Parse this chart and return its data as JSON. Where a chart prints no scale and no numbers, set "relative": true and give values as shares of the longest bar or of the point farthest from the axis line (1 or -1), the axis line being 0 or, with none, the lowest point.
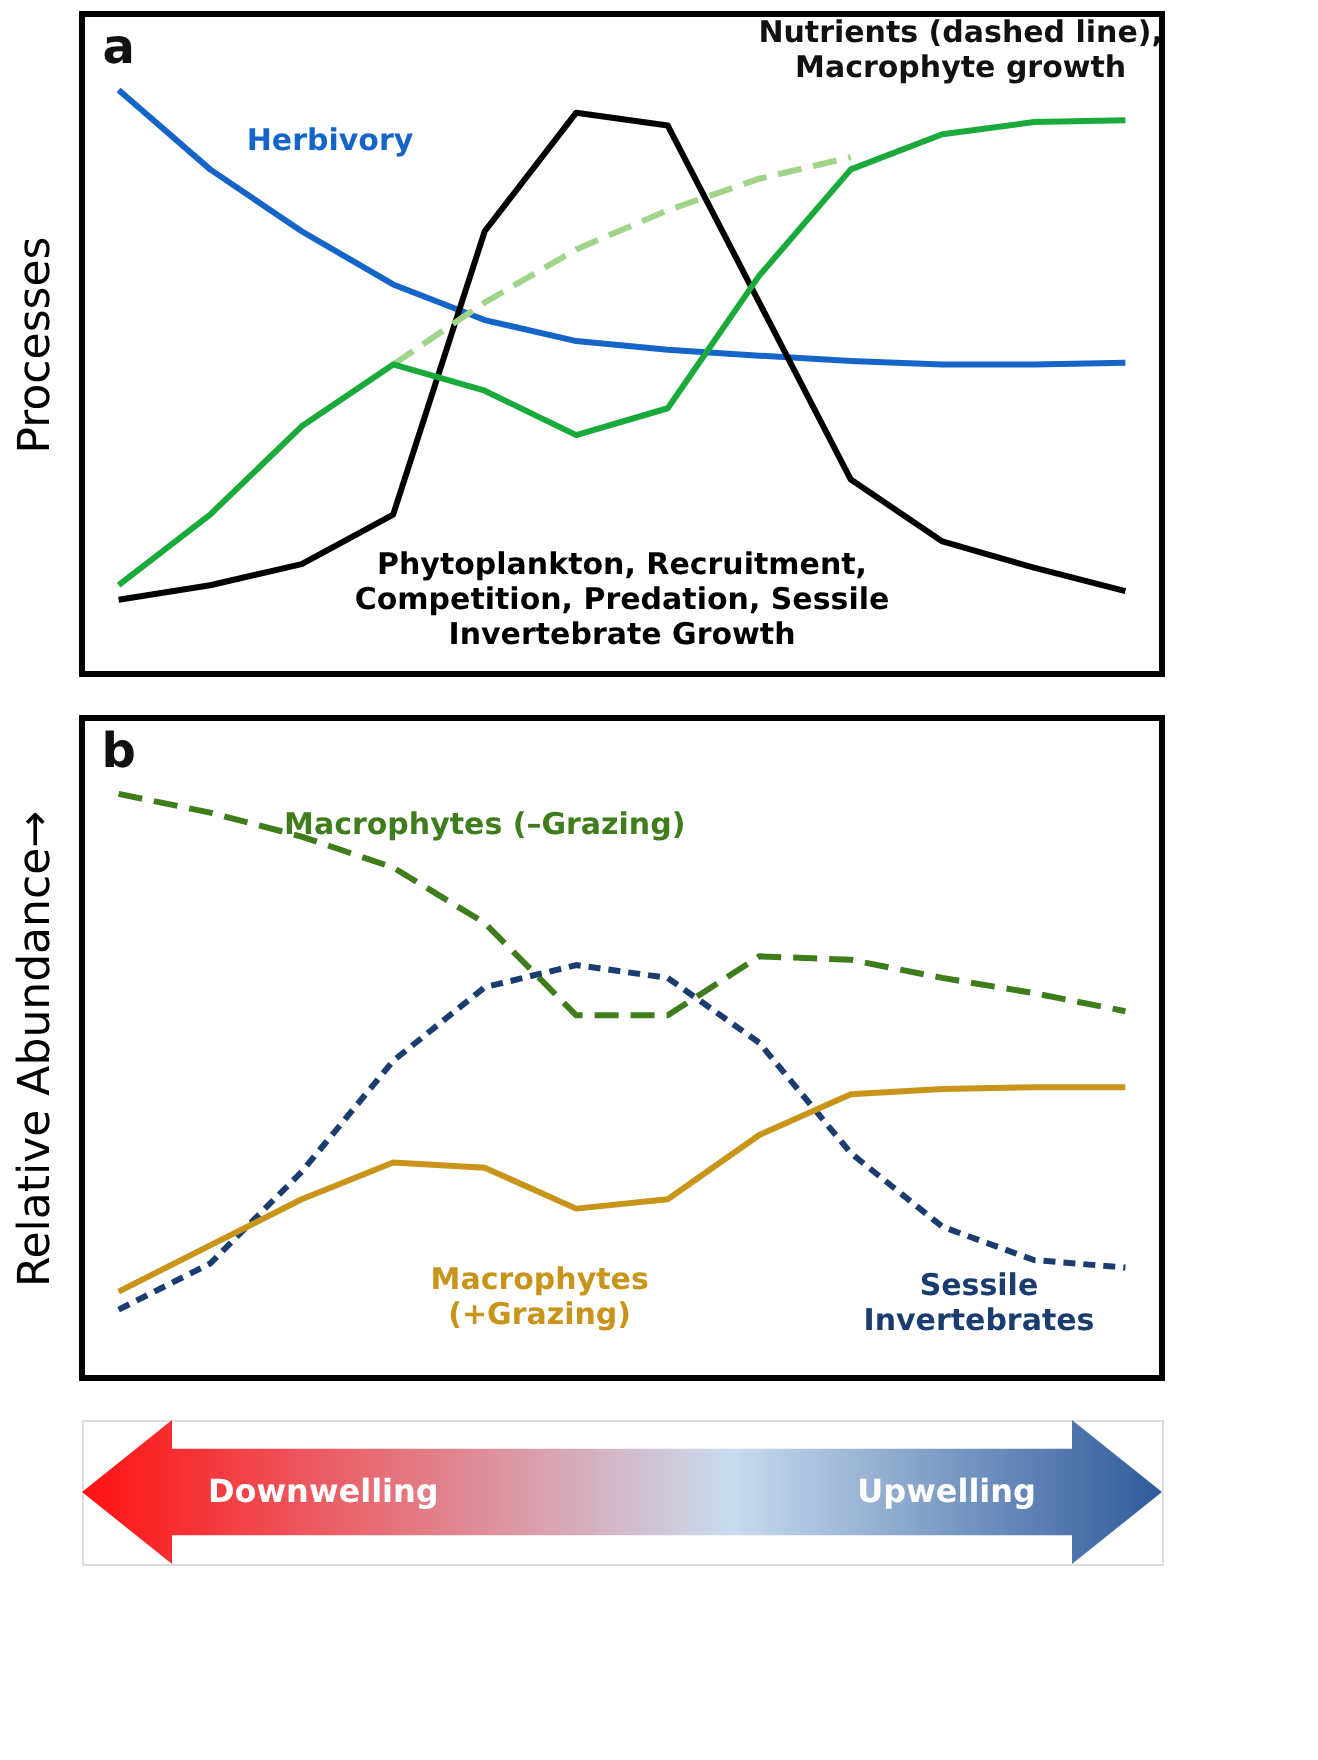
{
  "chart_data": [
    {
      "type": "line",
      "title": "a",
      "ylabel": "Processes",
      "relative": true,
      "categories": [
        null,
        null,
        null,
        null,
        null,
        null,
        null,
        null,
        null,
        null,
        null,
        null
      ],
      "legend": false,
      "annotations": [
        "Nutrients (dashed line), Macrophyte growth"
      ],
      "series": [
        {
          "name": "Herbivory",
          "color": "#1565c8",
          "line_style": "solid",
          "values": [
            1,
            0.864,
            0.758,
            0.667,
            0.606,
            0.57,
            0.555,
            0.545,
            0.536,
            0.53,
            0.53,
            0.533
          ]
        },
        {
          "name": "Phytoplankton, Recruitment, Competition, Predation, Sessile Invertebrate Growth",
          "color": "#000000",
          "line_style": "solid",
          "values": [
            0.127,
            0.152,
            0.188,
            0.273,
            0.758,
            0.961,
            0.939,
            0.636,
            0.333,
            0.227,
            0.182,
            0.142
          ]
        },
        {
          "color": "#9fd48a",
          "line_style": "dashed",
          "values": [
            null,
            null,
            null,
            0.53,
            0.636,
            0.727,
            0.794,
            0.848,
            0.885,
            null,
            null,
            null
          ]
        },
        {
          "color": "#1aaa3c",
          "line_style": "solid",
          "values": [
            0.152,
            0.273,
            0.424,
            0.53,
            0.485,
            0.409,
            0.455,
            0.682,
            0.864,
            0.924,
            0.945,
            0.948
          ]
        }
      ]
    },
    {
      "type": "line",
      "title": "b",
      "ylabel": "Relative Abundance→",
      "relative": true,
      "categories": [
        null,
        null,
        null,
        null,
        null,
        null,
        null,
        null,
        null,
        null,
        null,
        null
      ],
      "legend": false,
      "series": [
        {
          "name": "Macrophytes (–Grazing)",
          "color": "#3f7d1c",
          "line_style": "dashed",
          "values": [
            1,
            0.968,
            0.927,
            0.874,
            0.779,
            0.621,
            0.621,
            0.722,
            0.716,
            0.685,
            0.659,
            0.628
          ]
        },
        {
          "name": "Sessile Invertebrates",
          "color": "#1a3c6e",
          "line_style": "dotted",
          "values": [
            0.117,
            0.196,
            0.353,
            0.543,
            0.669,
            0.707,
            0.685,
            0.574,
            0.385,
            0.259,
            0.202,
            0.189
          ]
        },
        {
          "name": "Macrophytes (+Grazing)",
          "color": "#c8941a",
          "line_style": "solid",
          "values": [
            0.148,
            0.227,
            0.306,
            0.369,
            0.36,
            0.29,
            0.306,
            0.416,
            0.486,
            0.495,
            0.498,
            0.498
          ]
        }
      ]
    },
    {
      "type": "other",
      "annotations": [
        "Downwelling",
        "Upwelling"
      ],
      "colors": [
        "#ff1010",
        "#2f5a9a"
      ]
    }
  ]
}
